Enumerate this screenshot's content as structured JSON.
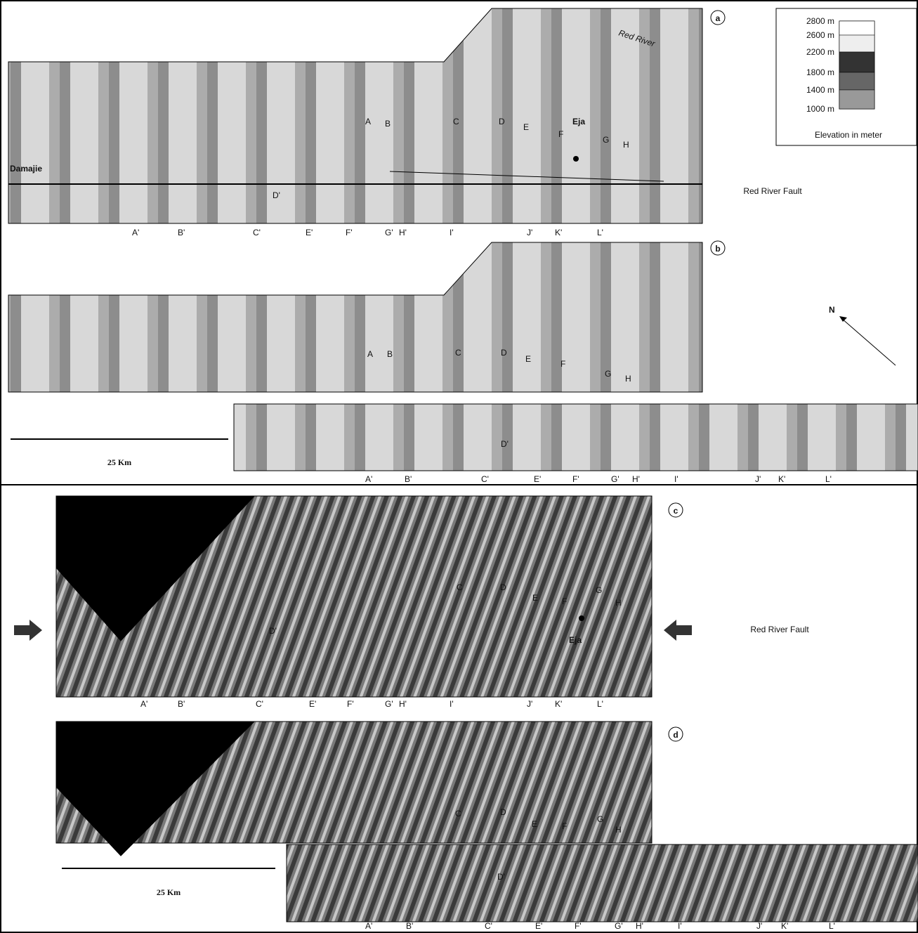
{
  "legend": {
    "levels": [
      "2800 m",
      "2600 m",
      "2200 m",
      "1800 m",
      "1400 m",
      "1000 m"
    ],
    "title": "Elevation in meter"
  },
  "north": "N",
  "scale_bars": [
    "25 Km",
    "25 Km"
  ],
  "panels": [
    {
      "id": "a",
      "river": "Red River",
      "town": "Eja",
      "start": "Damajie",
      "fault": "Red River Fault",
      "north_labels": [
        "A",
        "B",
        "C",
        "D",
        "E",
        "F",
        "G",
        "H"
      ],
      "inner_label": "D'",
      "south_labels": [
        "A'",
        "B'",
        "C'",
        "E'",
        "F'",
        "G'",
        "H'",
        "I'",
        "J'",
        "K'",
        "L'"
      ]
    },
    {
      "id": "b",
      "north_labels": [
        "A",
        "B",
        "C",
        "D",
        "E",
        "F",
        "G",
        "H"
      ],
      "inner_label": "D'",
      "south_labels": [
        "A'",
        "B'",
        "C'",
        "E'",
        "F'",
        "G'",
        "H'",
        "I'",
        "J'",
        "K'",
        "L'"
      ]
    },
    {
      "id": "c",
      "town": "Eja",
      "fault": "Red River Fault",
      "north_labels": [
        "C",
        "D",
        "E",
        "F",
        "G",
        "H"
      ],
      "inner_label": "D'",
      "south_labels": [
        "A'",
        "B'",
        "C'",
        "E'",
        "F'",
        "G'",
        "H'",
        "I'",
        "J'",
        "K'",
        "L'"
      ]
    },
    {
      "id": "d",
      "north_labels": [
        "C",
        "D",
        "E",
        "F",
        "G",
        "H"
      ],
      "inner_label": "D'",
      "south_labels": [
        "A'",
        "B'",
        "C'",
        "E'",
        "F'",
        "G'",
        "H'",
        "I'",
        "J'",
        "K'",
        "L'"
      ]
    }
  ]
}
